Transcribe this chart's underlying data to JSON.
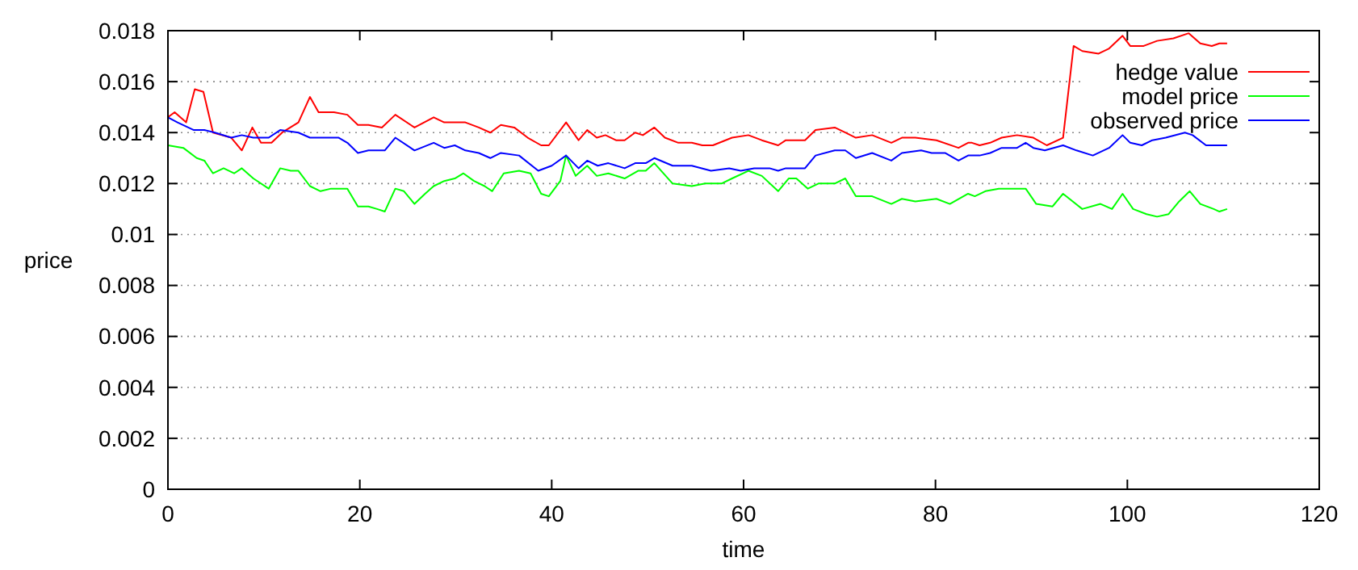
{
  "chart_data": {
    "type": "line",
    "xlabel": "time",
    "ylabel": "price",
    "xlim": [
      0,
      120
    ],
    "xticks": [
      0,
      20,
      40,
      60,
      80,
      100,
      120
    ],
    "ylim": [
      0,
      0.018
    ],
    "yticks": [
      0,
      0.002,
      0.004,
      0.006,
      0.008,
      0.01,
      0.012,
      0.014,
      0.016,
      0.018
    ],
    "grid": "y",
    "legend": "top right",
    "line_style": "solid",
    "marker": "none",
    "series": [
      {
        "name": "hedge value",
        "color": "#ff0000",
        "x": [
          0,
          0.7,
          1.9,
          2.8,
          3.7,
          4.7,
          6.6,
          7.7,
          8.8,
          9.7,
          10.8,
          11.9,
          13.6,
          14.8,
          15.7,
          17.3,
          18.7,
          19.8,
          20.9,
          22.3,
          23.7,
          25.7,
          27.7,
          28.8,
          29.9,
          31,
          32.4,
          33.6,
          34.7,
          36.1,
          37.5,
          38.9,
          39.7,
          41.5,
          42.8,
          43.7,
          44.7,
          45.6,
          46.7,
          47.6,
          48.7,
          49.5,
          50.7,
          51.8,
          53.2,
          54.6,
          55.7,
          56.8,
          58.8,
          60.5,
          61.9,
          63.6,
          64.4,
          66.4,
          67.5,
          69.5,
          70.6,
          71.7,
          73.4,
          75.4,
          76.5,
          77.9,
          80.1,
          82.4,
          83.4,
          83.8,
          84.6,
          85.7,
          86.9,
          88.5,
          90.2,
          91.6,
          93.3,
          94.4,
          95.3,
          97,
          98.1,
          99.5,
          100.3,
          101.7,
          103.1,
          104.8,
          106.4,
          107.6,
          108.8,
          109.6,
          110.4
        ],
        "values": [
          0.0146,
          0.0148,
          0.0144,
          0.0157,
          0.0156,
          0.014,
          0.0138,
          0.0133,
          0.0142,
          0.0136,
          0.0136,
          0.014,
          0.0144,
          0.0154,
          0.0148,
          0.0148,
          0.0147,
          0.0143,
          0.0143,
          0.0142,
          0.0147,
          0.0142,
          0.0146,
          0.0144,
          0.0144,
          0.0144,
          0.0142,
          0.014,
          0.0143,
          0.0142,
          0.0138,
          0.0135,
          0.0135,
          0.0144,
          0.0137,
          0.0141,
          0.0138,
          0.0139,
          0.0137,
          0.0137,
          0.014,
          0.0139,
          0.0142,
          0.0138,
          0.0136,
          0.0136,
          0.0135,
          0.0135,
          0.0138,
          0.0139,
          0.0137,
          0.0135,
          0.0137,
          0.0137,
          0.0141,
          0.0142,
          0.014,
          0.0138,
          0.0139,
          0.0136,
          0.0138,
          0.0138,
          0.0137,
          0.0134,
          0.0136,
          0.0136,
          0.0135,
          0.0136,
          0.0138,
          0.0139,
          0.0138,
          0.0135,
          0.0138,
          0.0174,
          0.0172,
          0.0171,
          0.0173,
          0.0178,
          0.0174,
          0.0174,
          0.0176,
          0.0177,
          0.0179,
          0.0175,
          0.0174,
          0.0175,
          0.0175
        ]
      },
      {
        "name": "model price",
        "color": "#00ff00",
        "x": [
          0,
          1.6,
          3,
          3.8,
          4.7,
          5.8,
          6.9,
          7.7,
          8.9,
          10.5,
          11.7,
          12.8,
          13.6,
          14.8,
          15.9,
          17,
          18.7,
          19.8,
          20.9,
          21.8,
          22.6,
          23.7,
          24.6,
          25.7,
          26.8,
          27.7,
          28.8,
          29.9,
          30.8,
          31.9,
          33,
          33.8,
          35,
          36.6,
          37.8,
          38.9,
          39.7,
          40.9,
          41.5,
          42.5,
          43.7,
          44.7,
          45.9,
          47.6,
          49,
          49.8,
          50.7,
          52.6,
          54.6,
          56,
          57.7,
          58.8,
          60.5,
          61.9,
          63.6,
          64.7,
          65.5,
          66.7,
          67.8,
          69.5,
          70.6,
          71.7,
          73.4,
          75.4,
          76.5,
          77.9,
          80.1,
          81.5,
          83.4,
          84.1,
          85.2,
          86.6,
          88,
          89.4,
          90.5,
          92.2,
          93.3,
          95.3,
          97.2,
          98.4,
          99.5,
          100.6,
          102,
          103.1,
          104.3,
          105.4,
          106.5,
          107.6,
          109,
          109.6,
          110.4
        ],
        "values": [
          0.0135,
          0.0134,
          0.013,
          0.0129,
          0.0124,
          0.0126,
          0.0124,
          0.0126,
          0.0122,
          0.0118,
          0.0126,
          0.0125,
          0.0125,
          0.0119,
          0.0117,
          0.0118,
          0.0118,
          0.0111,
          0.0111,
          0.011,
          0.0109,
          0.0118,
          0.0117,
          0.0112,
          0.0116,
          0.0119,
          0.0121,
          0.0122,
          0.0124,
          0.0121,
          0.0119,
          0.0117,
          0.0124,
          0.0125,
          0.0124,
          0.0116,
          0.0115,
          0.0121,
          0.0131,
          0.0123,
          0.0127,
          0.0123,
          0.0124,
          0.0122,
          0.0125,
          0.0125,
          0.0128,
          0.012,
          0.0119,
          0.012,
          0.012,
          0.0122,
          0.0125,
          0.0123,
          0.0117,
          0.0122,
          0.0122,
          0.0118,
          0.012,
          0.012,
          0.0122,
          0.0115,
          0.0115,
          0.0112,
          0.0114,
          0.0113,
          0.0114,
          0.0112,
          0.0116,
          0.0115,
          0.0117,
          0.0118,
          0.0118,
          0.0118,
          0.0112,
          0.0111,
          0.0116,
          0.011,
          0.0112,
          0.011,
          0.0116,
          0.011,
          0.0108,
          0.0107,
          0.0108,
          0.0113,
          0.0117,
          0.0112,
          0.011,
          0.0109,
          0.011
        ]
      },
      {
        "name": "observed price",
        "color": "#0000ff",
        "x": [
          0,
          1,
          2.7,
          3.8,
          4.9,
          6.6,
          7.7,
          8.9,
          10.5,
          11.7,
          13.6,
          14.8,
          16.2,
          17.8,
          18.7,
          19.8,
          20.9,
          22.6,
          23.7,
          25.7,
          27.7,
          28.8,
          29.9,
          31,
          32.4,
          33.6,
          34.7,
          36.6,
          38.6,
          40,
          41.5,
          42.8,
          43.7,
          44.8,
          45.9,
          47.6,
          48.7,
          49.8,
          50.7,
          52.6,
          54.6,
          56.6,
          58.5,
          59.7,
          61.1,
          62.7,
          63.6,
          64.4,
          66.4,
          67.5,
          69.5,
          70.6,
          71.7,
          73.4,
          75.4,
          76.5,
          78.5,
          79.6,
          81,
          82.4,
          83.4,
          84.6,
          85.7,
          86.9,
          88.5,
          89.4,
          90.2,
          91.4,
          93.3,
          94.7,
          96.4,
          98.1,
          99.5,
          100.3,
          101.5,
          102.6,
          104,
          106,
          106.8,
          108.2,
          109.3,
          110.4
        ],
        "values": [
          0.0146,
          0.0144,
          0.0141,
          0.0141,
          0.014,
          0.0138,
          0.0139,
          0.0138,
          0.0138,
          0.0141,
          0.014,
          0.0138,
          0.0138,
          0.0138,
          0.0136,
          0.0132,
          0.0133,
          0.0133,
          0.0138,
          0.0133,
          0.0136,
          0.0134,
          0.0135,
          0.0133,
          0.0132,
          0.013,
          0.0132,
          0.0131,
          0.0125,
          0.0127,
          0.0131,
          0.0126,
          0.0129,
          0.0127,
          0.0128,
          0.0126,
          0.0128,
          0.0128,
          0.013,
          0.0127,
          0.0127,
          0.0125,
          0.0126,
          0.0125,
          0.0126,
          0.0126,
          0.0125,
          0.0126,
          0.0126,
          0.0131,
          0.0133,
          0.0133,
          0.013,
          0.0132,
          0.0129,
          0.0132,
          0.0133,
          0.0132,
          0.0132,
          0.0129,
          0.0131,
          0.0131,
          0.0132,
          0.0134,
          0.0134,
          0.0136,
          0.0134,
          0.0133,
          0.0135,
          0.0133,
          0.0131,
          0.0134,
          0.0139,
          0.0136,
          0.0135,
          0.0137,
          0.0138,
          0.014,
          0.0139,
          0.0135,
          0.0135,
          0.0135
        ]
      }
    ]
  }
}
